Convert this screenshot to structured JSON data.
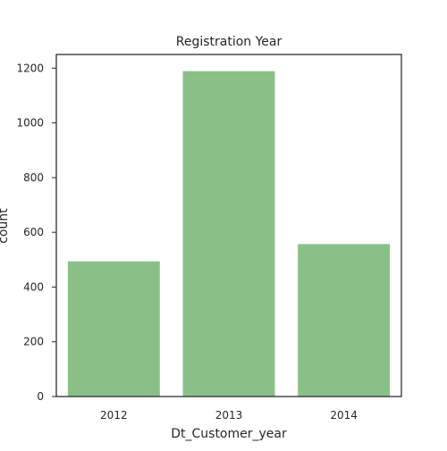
{
  "chart_data": {
    "type": "bar",
    "title": "Registration Year",
    "xlabel": "Dt_Customer_year",
    "ylabel": "count",
    "categories": [
      "2012",
      "2013",
      "2014"
    ],
    "values": [
      494,
      1189,
      557
    ],
    "ylim": [
      0,
      1250
    ],
    "yticks": [
      "0",
      "200",
      "400",
      "600",
      "800",
      "1000",
      "1200"
    ],
    "bar_color": "#8ac087",
    "grid": false,
    "legend": "none"
  }
}
